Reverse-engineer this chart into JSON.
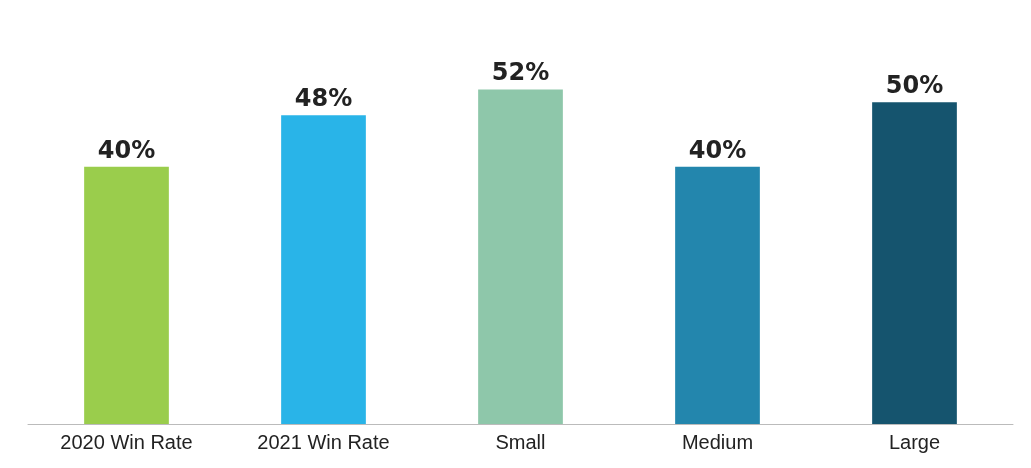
{
  "chart_data": {
    "type": "bar",
    "categories": [
      "2020 Win Rate",
      "2021 Win Rate",
      "Small",
      "Medium",
      "Large"
    ],
    "values": [
      40,
      48,
      52,
      40,
      50
    ],
    "colors": [
      "#9acd4c",
      "#29b4e8",
      "#8ec7aa",
      "#2386ad",
      "#15546e"
    ],
    "value_labels": [
      "40%",
      "48%",
      "52%",
      "40%",
      "50%"
    ]
  }
}
